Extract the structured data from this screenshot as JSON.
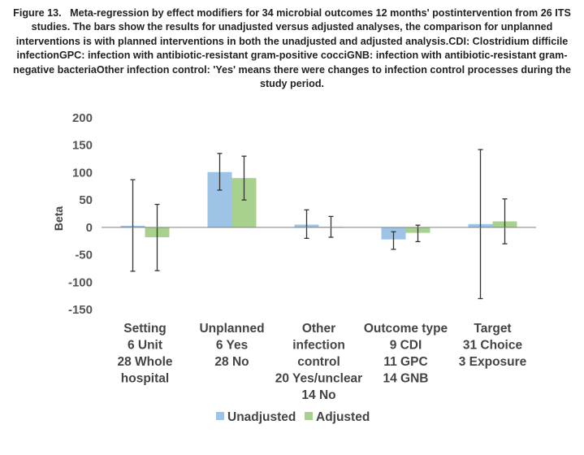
{
  "caption": {
    "prefix": "Figure 13.",
    "text": "Meta-regression by effect modifiers for 34 microbial outcomes 12 months' postintervention from 26 ITS studies. The bars show the results for unadjusted versus adjusted analyses, the comparison for unplanned interventions is with planned interventions in both the unadjusted and adjusted analysis.CDI: Clostridium difficile infectionGPC: infection with antibiotic-resistant gram-positive cocciGNB: infection with antibiotic-resistant gram-negative bacteriaOther infection control: 'Yes' means there were changes to infection control processes during the study period."
  },
  "colors": {
    "unadjusted": "#9dc3e6",
    "adjusted": "#a9d18e",
    "axis": "#7f7f7f",
    "errorbar": "#333333"
  },
  "chart_data": {
    "type": "bar",
    "ylabel": "Beta",
    "xlabel": "",
    "ylim": [
      -150,
      200
    ],
    "yticks": [
      200,
      150,
      100,
      50,
      0,
      -50,
      -100,
      -150
    ],
    "categories": [
      [
        "Setting",
        "6 Unit",
        "28 Whole",
        "hospital"
      ],
      [
        "Unplanned",
        "6 Yes",
        "28 No"
      ],
      [
        "Other",
        "infection",
        "control",
        "20 Yes/unclear",
        "14 No"
      ],
      [
        "Outcome type",
        "9 CDI",
        "11 GPC",
        "14 GNB"
      ],
      [
        "Target",
        "31 Choice",
        "3 Exposure"
      ]
    ],
    "series": [
      {
        "name": "Unadjusted",
        "values": [
          3,
          101,
          5,
          -22,
          6
        ],
        "err_low": [
          -80,
          68,
          -20,
          -40,
          -130
        ],
        "err_high": [
          87,
          135,
          32,
          -8,
          142
        ]
      },
      {
        "name": "Adjusted",
        "values": [
          -18,
          90,
          1,
          -10,
          11
        ],
        "err_low": [
          -79,
          50,
          -18,
          -26,
          -30
        ],
        "err_high": [
          42,
          130,
          20,
          4,
          52
        ]
      }
    ],
    "legend": {
      "position": "bottom",
      "entries": [
        "Unadjusted",
        "Adjusted"
      ]
    }
  }
}
